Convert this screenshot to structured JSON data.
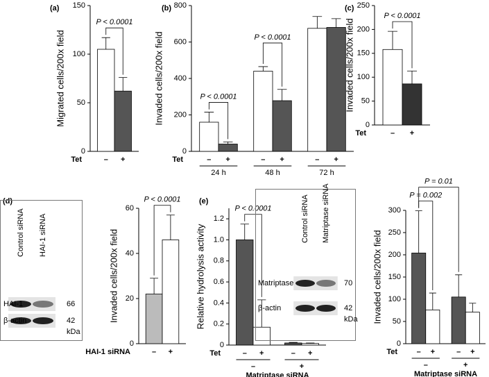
{
  "chart_data": [
    {
      "type": "bar",
      "panel_label": "(a)",
      "y_label": "Migrated cells/200x field",
      "ylim": [
        0,
        150
      ],
      "yticks": [
        0,
        50,
        100,
        150
      ],
      "x_label": "Tet",
      "categories": [
        "–",
        "+"
      ],
      "values": [
        105,
        62
      ],
      "errors": [
        12,
        14
      ],
      "colors": [
        "#ffffff",
        "#555555"
      ],
      "annotations": [
        {
          "text": "P < 0.0001",
          "bars": [
            0,
            1
          ]
        }
      ]
    },
    {
      "type": "bar",
      "panel_label": "(b)",
      "y_label": "Invaded cells/200x field",
      "ylim": [
        0,
        800
      ],
      "yticks": [
        0,
        200,
        400,
        600,
        800
      ],
      "x_label": "Tet",
      "categories": [
        "–",
        "+",
        "–",
        "+",
        "–",
        "+"
      ],
      "groups": [
        "24 h",
        "48 h",
        "72 h"
      ],
      "values": [
        160,
        40,
        440,
        278,
        675,
        680
      ],
      "errors": [
        55,
        12,
        25,
        62,
        65,
        48
      ],
      "colors": [
        "#ffffff",
        "#555555",
        "#ffffff",
        "#555555",
        "#ffffff",
        "#555555"
      ],
      "annotations": [
        {
          "text": "P < 0.0001",
          "bars": [
            0,
            1
          ]
        },
        {
          "text": "P < 0.0001",
          "bars": [
            2,
            3
          ]
        }
      ]
    },
    {
      "type": "bar",
      "panel_label": "(c)",
      "y_label": "Invaded cells/200x field",
      "ylim": [
        0,
        250
      ],
      "yticks": [
        0,
        50,
        100,
        150,
        200,
        250
      ],
      "x_label": "Tet",
      "categories": [
        "–",
        "+"
      ],
      "values": [
        158,
        86
      ],
      "errors": [
        38,
        27
      ],
      "colors": [
        "#ffffff",
        "#333333"
      ],
      "annotations": [
        {
          "text": "P < 0.0001",
          "bars": [
            0,
            1
          ]
        }
      ]
    },
    {
      "type": "bar",
      "panel_label": "(d)",
      "y_label": "Invaded cells/200x field",
      "ylim": [
        0,
        60
      ],
      "yticks": [
        0,
        20,
        40,
        60
      ],
      "x_label": "HAI-1 siRNA",
      "categories": [
        "–",
        "+"
      ],
      "values": [
        22,
        46
      ],
      "errors": [
        7,
        11
      ],
      "colors": [
        "#bbbbbb",
        "#ffffff"
      ],
      "annotations": [
        {
          "text": "P < 0.0001",
          "bars": [
            0,
            1
          ]
        }
      ],
      "blot": {
        "lanes": [
          "Control siRNA",
          "HAI-1 siRNA"
        ],
        "bands": [
          {
            "name": "HAI-1",
            "kda": "66"
          },
          {
            "name": "β-actin",
            "kda": "42"
          }
        ],
        "unit": "kDa"
      }
    },
    {
      "type": "bar",
      "panel_label": "(e)",
      "y_label": "Relative hydrolysis activity",
      "ylim": [
        0,
        1.3
      ],
      "yticks": [
        0,
        0.2,
        0.4,
        0.6,
        0.8,
        {
          "value": 1,
          "label": "1.0"
        },
        1.2
      ],
      "x_label": "Tet",
      "categories": [
        "–",
        "+",
        "–",
        "+"
      ],
      "groups": [
        "–",
        "+"
      ],
      "group_label": "Matriptase siRNA",
      "values": [
        1,
        0.17,
        0.02,
        0.015
      ],
      "errors": [
        0.15,
        0.26,
        0.005,
        0.005
      ],
      "colors": [
        "#555555",
        "#ffffff",
        "#555555",
        "#ffffff"
      ],
      "annotations": [
        {
          "text": "P < 0.0001",
          "bars": [
            0,
            1
          ]
        }
      ],
      "blot": {
        "lanes": [
          "Control siRNA",
          "Matriptase siRNA"
        ],
        "bands": [
          {
            "name": "Matriptase",
            "kda": "70"
          },
          {
            "name": "β-actin",
            "kda": "42"
          }
        ],
        "unit": "kDa"
      }
    },
    {
      "type": "bar",
      "y_label": "Invaded cells/200x field",
      "ylim": [
        0,
        300
      ],
      "yticks": [
        0,
        50,
        100,
        150,
        200,
        250,
        300
      ],
      "x_label": "Tet",
      "categories": [
        "–",
        "+",
        "–",
        "+"
      ],
      "groups": [
        "–",
        "+"
      ],
      "group_label": "Matriptase siRNA",
      "values": [
        204,
        76,
        105,
        71
      ],
      "errors": [
        95,
        38,
        50,
        20
      ],
      "colors": [
        "#555555",
        "#ffffff",
        "#555555",
        "#ffffff"
      ],
      "annotations": [
        {
          "text": "P = 0.002",
          "bars": [
            0,
            1
          ]
        },
        {
          "text": "P = 0.01",
          "bars": [
            0,
            2
          ]
        }
      ]
    }
  ]
}
